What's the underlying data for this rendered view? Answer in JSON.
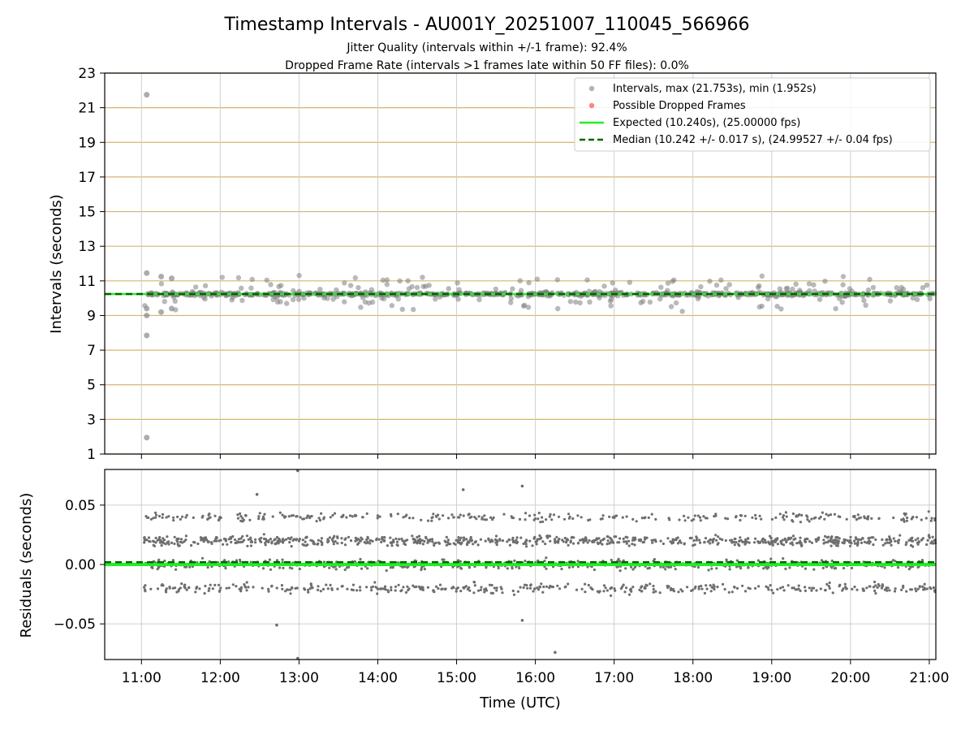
{
  "title": "Timestamp Intervals - AU001Y_20251007_110045_566966",
  "subtitle_1": "Jitter Quality (intervals within +/-1 frame): 92.4%",
  "subtitle_2": "Dropped Frame Rate (intervals >1 frames late within 50 FF files): 0.0%",
  "colors": {
    "intervals": "#808080",
    "dropped": "#ff3030",
    "expected": "#22ee22",
    "median": "#006400",
    "hgrid": "#d6b56e",
    "vgrid": "#cfcfcf",
    "residual": "#6e6e6e"
  },
  "chart_data": [
    {
      "type": "scatter",
      "ylabel": "Intervals (seconds)",
      "xlabel": "",
      "ylim": [
        1,
        23
      ],
      "xlim": [
        "10:32",
        "21:05"
      ],
      "yticks": [
        "1",
        "3",
        "5",
        "7",
        "9",
        "11",
        "13",
        "15",
        "17",
        "19",
        "21",
        "23"
      ],
      "grid": "horizontal and vertical",
      "legend_position": "top-right",
      "legend": [
        {
          "marker": "dot",
          "label": "Intervals, max (21.753s), min (1.952s)"
        },
        {
          "marker": "dot-red",
          "label": "Possible Dropped Frames"
        },
        {
          "marker": "line",
          "label": "Expected (10.240s), (25.00000 fps)"
        },
        {
          "marker": "dashed",
          "label": "Median (10.242 +/- 0.017 s), (24.99527 +/- 0.04 fps)"
        }
      ],
      "expected": 10.24,
      "median": 10.242,
      "outliers": [
        {
          "x": "11:04",
          "y": 21.75
        },
        {
          "x": "11:04",
          "y": 11.45
        },
        {
          "x": "11:15",
          "y": 11.25
        },
        {
          "x": "11:23",
          "y": 11.15
        },
        {
          "x": "11:04",
          "y": 9.4
        },
        {
          "x": "11:04",
          "y": 9.0
        },
        {
          "x": "11:15",
          "y": 9.2
        },
        {
          "x": "11:23",
          "y": 9.4
        },
        {
          "x": "11:04",
          "y": 7.85
        },
        {
          "x": "11:04",
          "y": 1.95
        }
      ],
      "series": [
        {
          "name": "Intervals, max (21.753s), min (1.952s)",
          "band_center": 10.24,
          "band_spread": 0.45,
          "x_range": [
            "11:02",
            "21:05"
          ]
        }
      ]
    },
    {
      "type": "scatter",
      "ylabel": "Residuals (seconds)",
      "xlabel": "Time (UTC)",
      "ylim": [
        -0.08,
        0.08
      ],
      "yticks": [
        "−0.05",
        "0.00",
        "0.05"
      ],
      "xticks": [
        "11:00",
        "12:00",
        "13:00",
        "14:00",
        "15:00",
        "16:00",
        "17:00",
        "18:00",
        "19:00",
        "20:00",
        "21:00"
      ],
      "grid": "horizontal and vertical",
      "expected": 0.0,
      "median": 0.002,
      "residual_levels": [
        -0.02,
        0.0,
        0.02,
        0.04
      ],
      "outliers": [
        {
          "x": "12:43",
          "y": -0.051
        },
        {
          "x": "12:59",
          "y": -0.079
        },
        {
          "x": "12:59",
          "y": 0.079
        },
        {
          "x": "15:05",
          "y": 0.063
        },
        {
          "x": "15:50",
          "y": 0.066
        },
        {
          "x": "15:50",
          "y": -0.047
        },
        {
          "x": "16:15",
          "y": -0.074
        },
        {
          "x": "12:28",
          "y": 0.059
        }
      ]
    }
  ]
}
